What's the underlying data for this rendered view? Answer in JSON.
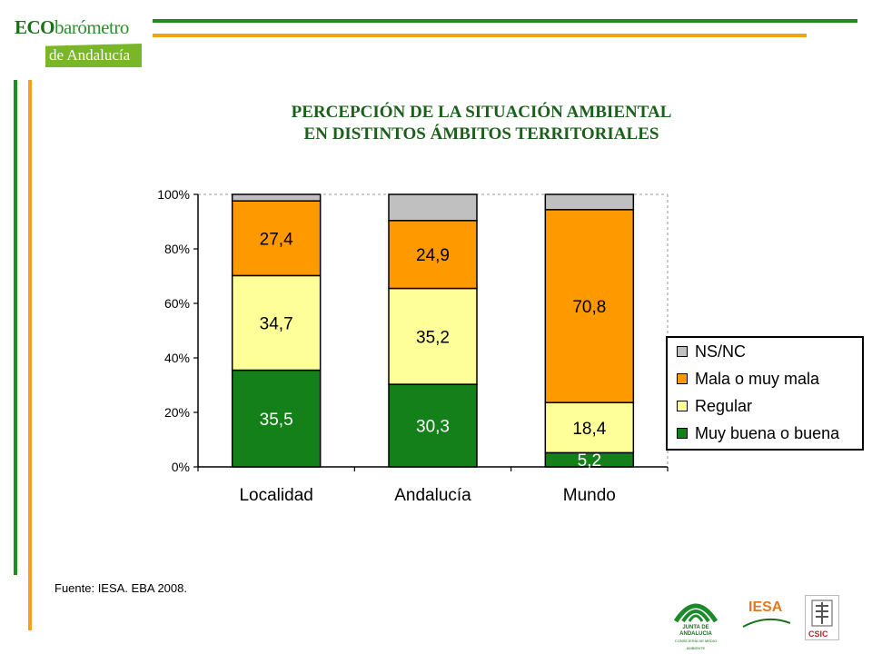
{
  "header": {
    "logo_line1_bold": "ECO",
    "logo_line1_rest": "barómetro",
    "logo_line2": "de Andalucía"
  },
  "colors": {
    "green_rule": "#1e8c1e",
    "orange_rule": "#f5a01a",
    "title": "#1a5f1a"
  },
  "chart_data": {
    "type": "bar",
    "stacked": true,
    "percent_axis": true,
    "title_line1": "PERCEPCIÓN DE LA SITUACIÓN AMBIENTAL",
    "title_line2": "EN DISTINTOS ÁMBITOS TERRITORIALES",
    "categories": [
      "Localidad",
      "Andalucía",
      "Mundo"
    ],
    "y_ticks": [
      "0%",
      "20%",
      "40%",
      "60%",
      "80%",
      "100%"
    ],
    "ylim": [
      0,
      100
    ],
    "legend_position": "right",
    "series": [
      {
        "name": "Muy buena o buena",
        "color": "#14801a",
        "values": [
          35.5,
          30.3,
          5.2
        ],
        "labels": [
          "35,5",
          "30,3",
          "5,2"
        ],
        "label_color": "#ffffff"
      },
      {
        "name": "Regular",
        "color": "#ffff99",
        "values": [
          34.7,
          35.2,
          18.4
        ],
        "labels": [
          "34,7",
          "35,2",
          "18,4"
        ],
        "label_color": "#000000"
      },
      {
        "name": "Mala o muy mala",
        "color": "#ff9900",
        "values": [
          27.4,
          24.9,
          70.8
        ],
        "labels": [
          "27,4",
          "24,9",
          "70,8"
        ],
        "label_color": "#000000"
      },
      {
        "name": "NS/NC",
        "color": "#c0c0c0",
        "values": [
          2.4,
          9.6,
          5.6
        ],
        "labels": [
          "",
          "",
          ""
        ],
        "label_color": "#000000"
      }
    ],
    "legend": [
      "NS/NC",
      "Mala o muy mala",
      "Regular",
      "Muy buena o buena"
    ]
  },
  "source": "Fuente: IESA. EBA 2008.",
  "footer_logos": {
    "junta": "JUNTA DE ANDALUCIA",
    "junta_sub": "CONSEJERÍA DE MEDIO AMBIENTE",
    "iesa": "IESA",
    "csic": "CSIC"
  }
}
